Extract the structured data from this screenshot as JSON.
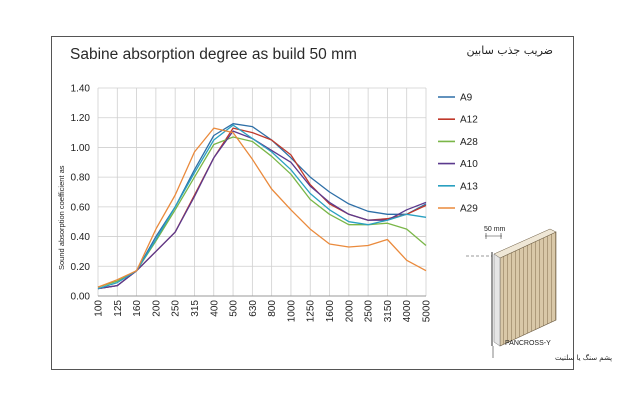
{
  "chart_data": {
    "type": "line",
    "title": "Sabine absorption degree as build 50 mm",
    "title_fa": "ضریب جذب سابین",
    "xlabel": "",
    "ylabel": "Sound absorption coefficient as",
    "categories": [
      "100",
      "125",
      "160",
      "200",
      "250",
      "315",
      "400",
      "500",
      "630",
      "800",
      "1000",
      "1250",
      "1600",
      "2000",
      "2500",
      "3150",
      "4000",
      "5000"
    ],
    "ylim": [
      0,
      1.4
    ],
    "yticks": [
      "0.00",
      "0.20",
      "0.40",
      "0.60",
      "0.80",
      "1.00",
      "1.20",
      "1.40"
    ],
    "grid": "both",
    "legend_position": "right",
    "series": [
      {
        "name": "A9",
        "color": "#2e6fa7",
        "values": [
          0.05,
          0.07,
          0.17,
          0.4,
          0.6,
          0.85,
          1.08,
          1.16,
          1.14,
          1.05,
          0.93,
          0.8,
          0.7,
          0.62,
          0.57,
          0.55,
          0.55,
          0.62
        ]
      },
      {
        "name": "A12",
        "color": "#c0392b",
        "values": [
          0.05,
          0.07,
          0.17,
          0.3,
          0.43,
          0.68,
          0.93,
          1.13,
          1.1,
          1.05,
          0.95,
          0.75,
          0.62,
          0.55,
          0.51,
          0.52,
          0.55,
          0.61
        ]
      },
      {
        "name": "A28",
        "color": "#7ab648",
        "values": [
          0.06,
          0.1,
          0.17,
          0.37,
          0.58,
          0.8,
          1.02,
          1.07,
          1.04,
          0.94,
          0.82,
          0.65,
          0.55,
          0.48,
          0.48,
          0.49,
          0.45,
          0.34
        ]
      },
      {
        "name": "A10",
        "color": "#5b3a8e",
        "values": [
          0.05,
          0.07,
          0.17,
          0.3,
          0.43,
          0.67,
          0.93,
          1.11,
          1.06,
          0.98,
          0.9,
          0.74,
          0.63,
          0.55,
          0.51,
          0.51,
          0.58,
          0.63
        ]
      },
      {
        "name": "A13",
        "color": "#2aa0c0",
        "values": [
          0.05,
          0.09,
          0.17,
          0.38,
          0.6,
          0.83,
          1.05,
          1.15,
          1.06,
          0.97,
          0.85,
          0.69,
          0.58,
          0.5,
          0.48,
          0.51,
          0.55,
          0.53
        ]
      },
      {
        "name": "A29",
        "color": "#ea8a3c",
        "values": [
          0.06,
          0.11,
          0.17,
          0.45,
          0.68,
          0.97,
          1.13,
          1.1,
          0.92,
          0.72,
          0.58,
          0.45,
          0.35,
          0.33,
          0.34,
          0.38,
          0.24,
          0.17
        ]
      }
    ]
  },
  "panel": {
    "dimension_label": "50 mm",
    "product_label": "PANCROSS-Y",
    "material_label_fa": "پشم سنگ یا سلنیت"
  }
}
